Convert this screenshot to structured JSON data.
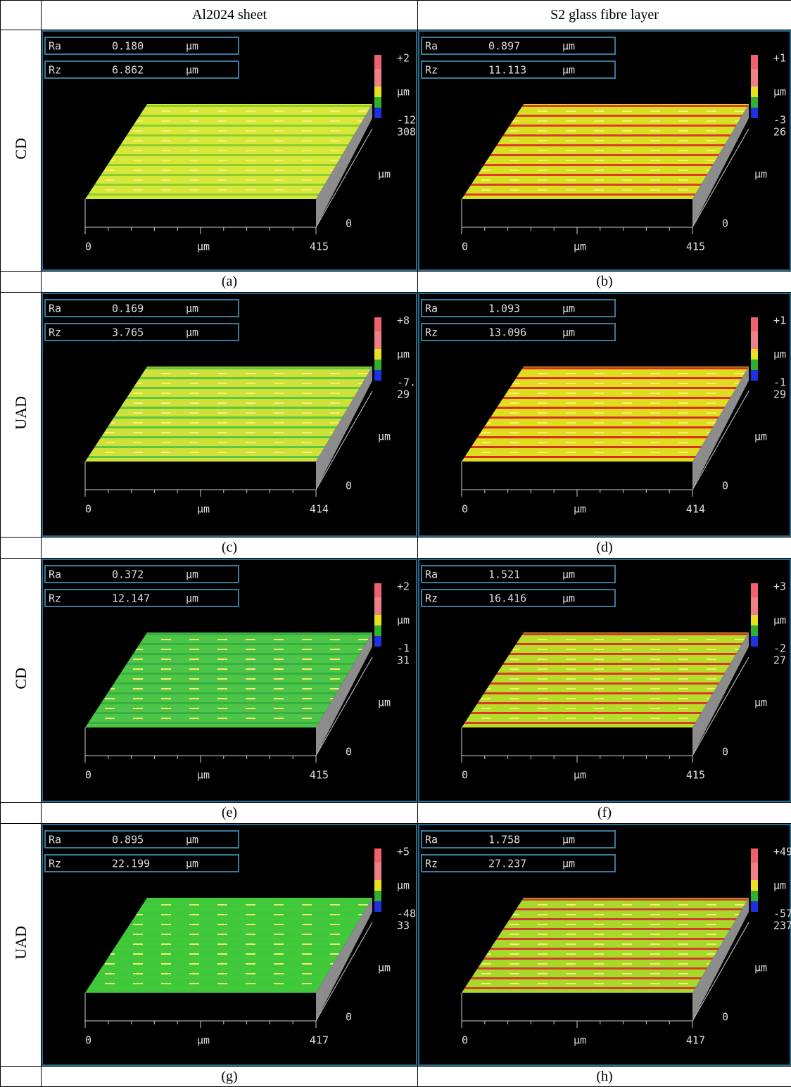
{
  "header": {
    "columns": [
      "Al2024 sheet",
      "S2 glass fibre layer"
    ]
  },
  "rows": [
    {
      "label": "CD",
      "captions": [
        "(a)",
        "(b)"
      ],
      "panels": [
        {
          "ra_label": "Ra",
          "ra": "0.180",
          "ra_unit": "μm",
          "rz_label": "Rz",
          "rz": "6.862",
          "rz_unit": "μm",
          "scale": [
            "+2",
            "μm",
            "-12",
            "308"
          ],
          "x_axis": [
            "0",
            "μm",
            "415"
          ],
          "z_axis": [
            "μm",
            "0"
          ]
        },
        {
          "ra_label": "Ra",
          "ra": "0.897",
          "ra_unit": "μm",
          "rz_label": "Rz",
          "rz": "11.113",
          "rz_unit": "μm",
          "scale": [
            "+1",
            "μm",
            "-3",
            "26"
          ],
          "x_axis": [
            "0",
            "μm",
            "415"
          ],
          "z_axis": [
            "μm",
            "0"
          ]
        }
      ]
    },
    {
      "label": "UAD",
      "captions": [
        "(c)",
        "(d)"
      ],
      "panels": [
        {
          "ra_label": "Ra",
          "ra": "0.169",
          "ra_unit": "μm",
          "rz_label": "Rz",
          "rz": "3.765",
          "rz_unit": "μm",
          "scale": [
            "+8",
            "μm",
            "-7.",
            "29"
          ],
          "x_axis": [
            "0",
            "μm",
            "414"
          ],
          "z_axis": [
            "μm",
            "0"
          ]
        },
        {
          "ra_label": "Ra",
          "ra": "1.093",
          "ra_unit": "μm",
          "rz_label": "Rz",
          "rz": "13.096",
          "rz_unit": "μm",
          "scale": [
            "+1",
            "μm",
            "-1",
            "29"
          ],
          "x_axis": [
            "0",
            "μm",
            "414"
          ],
          "z_axis": [
            "μm",
            "0"
          ]
        }
      ]
    },
    {
      "label": "CD",
      "captions": [
        "(e)",
        "(f)"
      ],
      "panels": [
        {
          "ra_label": "Ra",
          "ra": "0.372",
          "ra_unit": "μm",
          "rz_label": "Rz",
          "rz": "12.147",
          "rz_unit": "μm",
          "scale": [
            "+2",
            "μm",
            "-1",
            "31"
          ],
          "x_axis": [
            "0",
            "μm",
            "415"
          ],
          "z_axis": [
            "μm",
            "0"
          ]
        },
        {
          "ra_label": "Ra",
          "ra": "1.521",
          "ra_unit": "μm",
          "rz_label": "Rz",
          "rz": "16.416",
          "rz_unit": "μm",
          "scale": [
            "+3",
            "μm",
            "-2",
            "27"
          ],
          "x_axis": [
            "0",
            "μm",
            "415"
          ],
          "z_axis": [
            "μm",
            "0"
          ]
        }
      ]
    },
    {
      "label": "UAD",
      "captions": [
        "(g)",
        "(h)"
      ],
      "panels": [
        {
          "ra_label": "Ra",
          "ra": "0.895",
          "ra_unit": "μm",
          "rz_label": "Rz",
          "rz": "22.199",
          "rz_unit": "μm",
          "scale": [
            "+5",
            "μm",
            "-48",
            "33"
          ],
          "x_axis": [
            "0",
            "μm",
            "417"
          ],
          "z_axis": [
            "μm",
            "0"
          ]
        },
        {
          "ra_label": "Ra",
          "ra": "1.758",
          "ra_unit": "μm",
          "rz_label": "Rz",
          "rz": "27.237",
          "rz_unit": "μm",
          "scale": [
            "+49",
            "μm",
            "-57",
            "237"
          ],
          "x_axis": [
            "0",
            "μm",
            "417"
          ],
          "z_axis": [
            "μm",
            "0"
          ]
        }
      ]
    }
  ]
}
